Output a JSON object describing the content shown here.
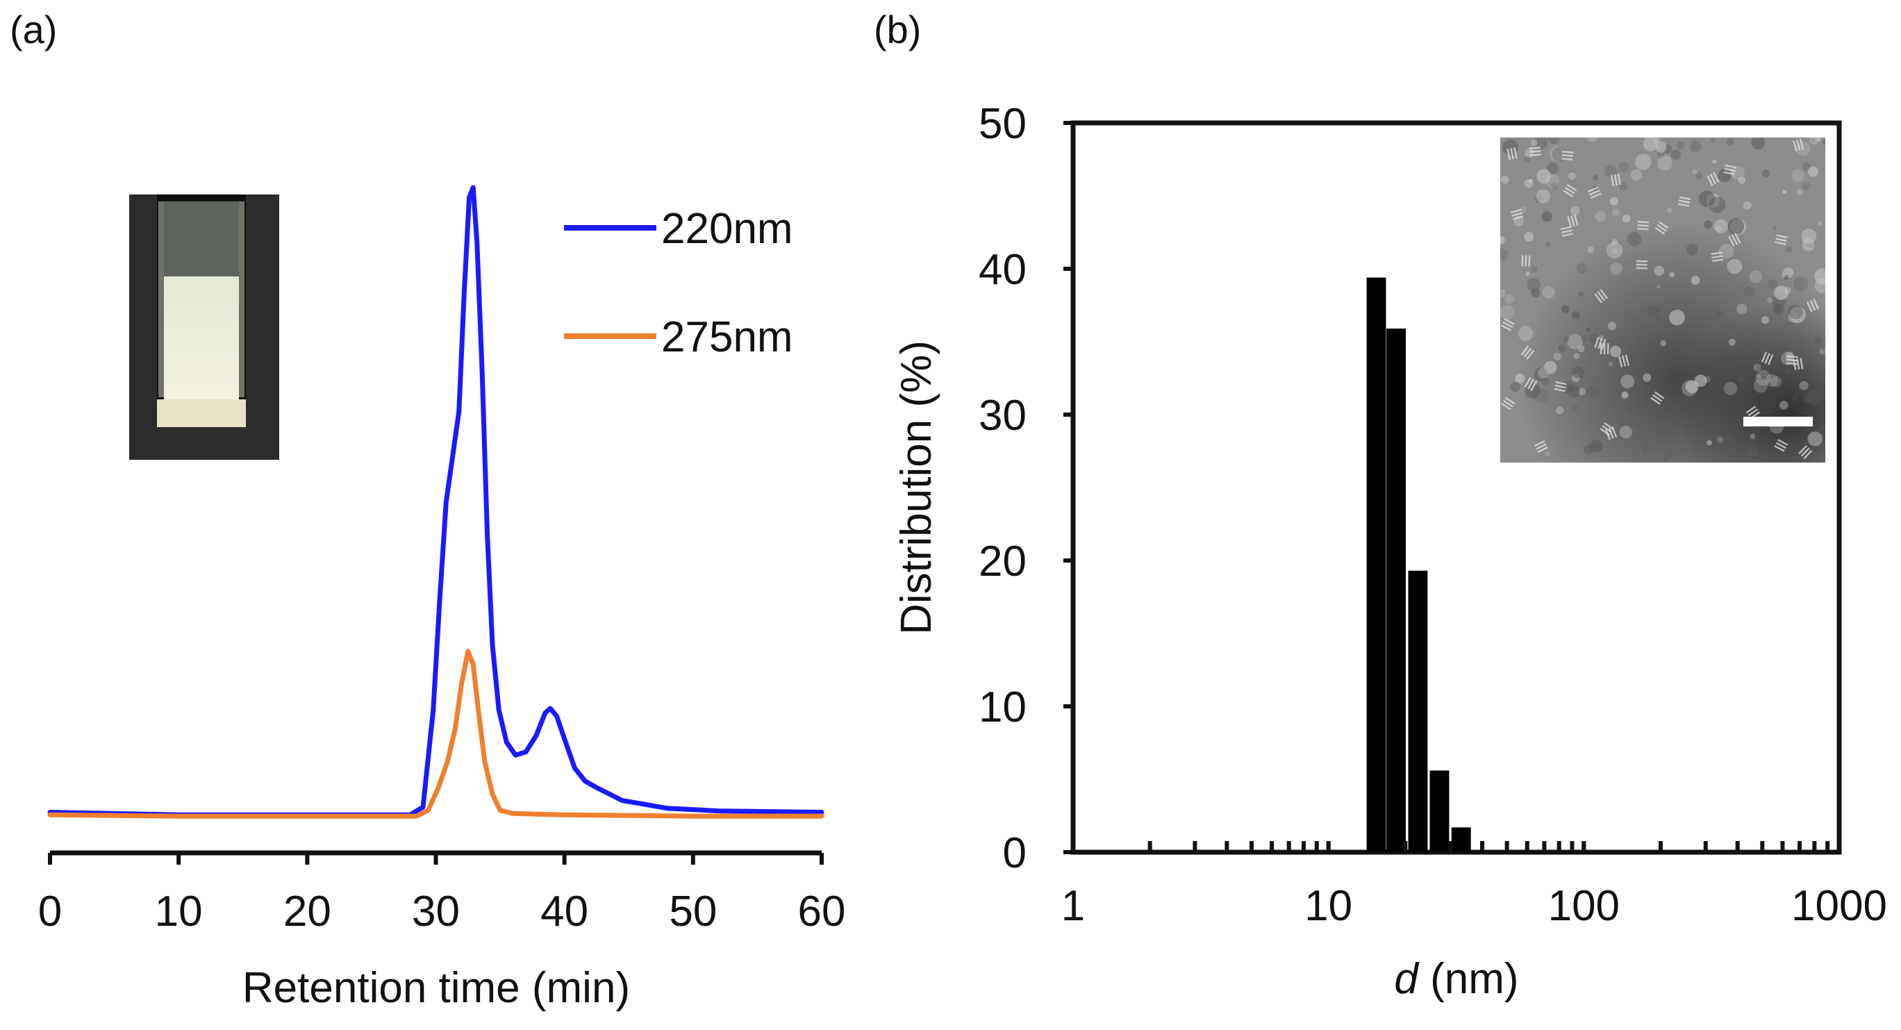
{
  "chart_data": [
    {
      "panel_label": "(a)",
      "type": "line",
      "xlabel": "Retention time (min)",
      "ylabel": "",
      "xlim": [
        0,
        60
      ],
      "xticks": [
        "0",
        "10",
        "20",
        "30",
        "40",
        "50",
        "60"
      ],
      "y_axis_shown": false,
      "ylim": [
        0,
        100
      ],
      "inset": "photo of cuvette containing pale translucent solution",
      "series": [
        {
          "name": "220nm",
          "color": "#1a1aff",
          "points": [
            [
              0,
              2.2
            ],
            [
              10,
              1.8
            ],
            [
              20,
              1.8
            ],
            [
              28,
              1.8
            ],
            [
              29,
              3
            ],
            [
              29.8,
              18
            ],
            [
              30.3,
              35
            ],
            [
              30.8,
              50
            ],
            [
              31.3,
              57
            ],
            [
              31.8,
              64
            ],
            [
              32.2,
              82
            ],
            [
              32.6,
              97
            ],
            [
              32.9,
              98.5
            ],
            [
              33.2,
              90
            ],
            [
              33.6,
              70
            ],
            [
              34.0,
              45
            ],
            [
              34.4,
              28
            ],
            [
              34.9,
              18
            ],
            [
              35.5,
              13
            ],
            [
              36.2,
              11
            ],
            [
              37.0,
              11.5
            ],
            [
              37.8,
              14
            ],
            [
              38.5,
              17.5
            ],
            [
              38.9,
              18.2
            ],
            [
              39.4,
              17
            ],
            [
              40.0,
              13.5
            ],
            [
              40.8,
              9
            ],
            [
              41.6,
              7
            ],
            [
              42.5,
              6
            ],
            [
              43.5,
              5
            ],
            [
              44.5,
              4
            ],
            [
              46,
              3.5
            ],
            [
              48,
              2.8
            ],
            [
              52,
              2.4
            ],
            [
              60,
              2.2
            ]
          ]
        },
        {
          "name": "275nm",
          "color": "#f07f2e",
          "points": [
            [
              0,
              1.8
            ],
            [
              10,
              1.6
            ],
            [
              20,
              1.6
            ],
            [
              28.5,
              1.6
            ],
            [
              29.4,
              2.5
            ],
            [
              30.2,
              6
            ],
            [
              30.9,
              10
            ],
            [
              31.5,
              15
            ],
            [
              32.0,
              22
            ],
            [
              32.5,
              27
            ],
            [
              32.9,
              25
            ],
            [
              33.3,
              18
            ],
            [
              33.8,
              10
            ],
            [
              34.4,
              5
            ],
            [
              35.0,
              2.5
            ],
            [
              36,
              2
            ],
            [
              40,
              1.8
            ],
            [
              50,
              1.6
            ],
            [
              60,
              1.6
            ]
          ]
        }
      ]
    },
    {
      "panel_label": "(b)",
      "type": "bar",
      "xscale": "log",
      "xlabel_italic": "d",
      "xlabel_rest": " (nm)",
      "ylabel": "Distribution (%)",
      "xlim": [
        1,
        1000
      ],
      "ylim": [
        0,
        50
      ],
      "xticks": [
        "1",
        "10",
        "100",
        "1000"
      ],
      "yticks": [
        "0",
        "10",
        "20",
        "30",
        "40",
        "50"
      ],
      "inset": "TEM micrograph with scale bar",
      "bars": [
        {
          "d": 15.4,
          "value": 39.4
        },
        {
          "d": 18.4,
          "value": 35.9
        },
        {
          "d": 22.4,
          "value": 19.3
        },
        {
          "d": 27.2,
          "value": 5.6
        },
        {
          "d": 33.1,
          "value": 1.7
        }
      ]
    }
  ]
}
